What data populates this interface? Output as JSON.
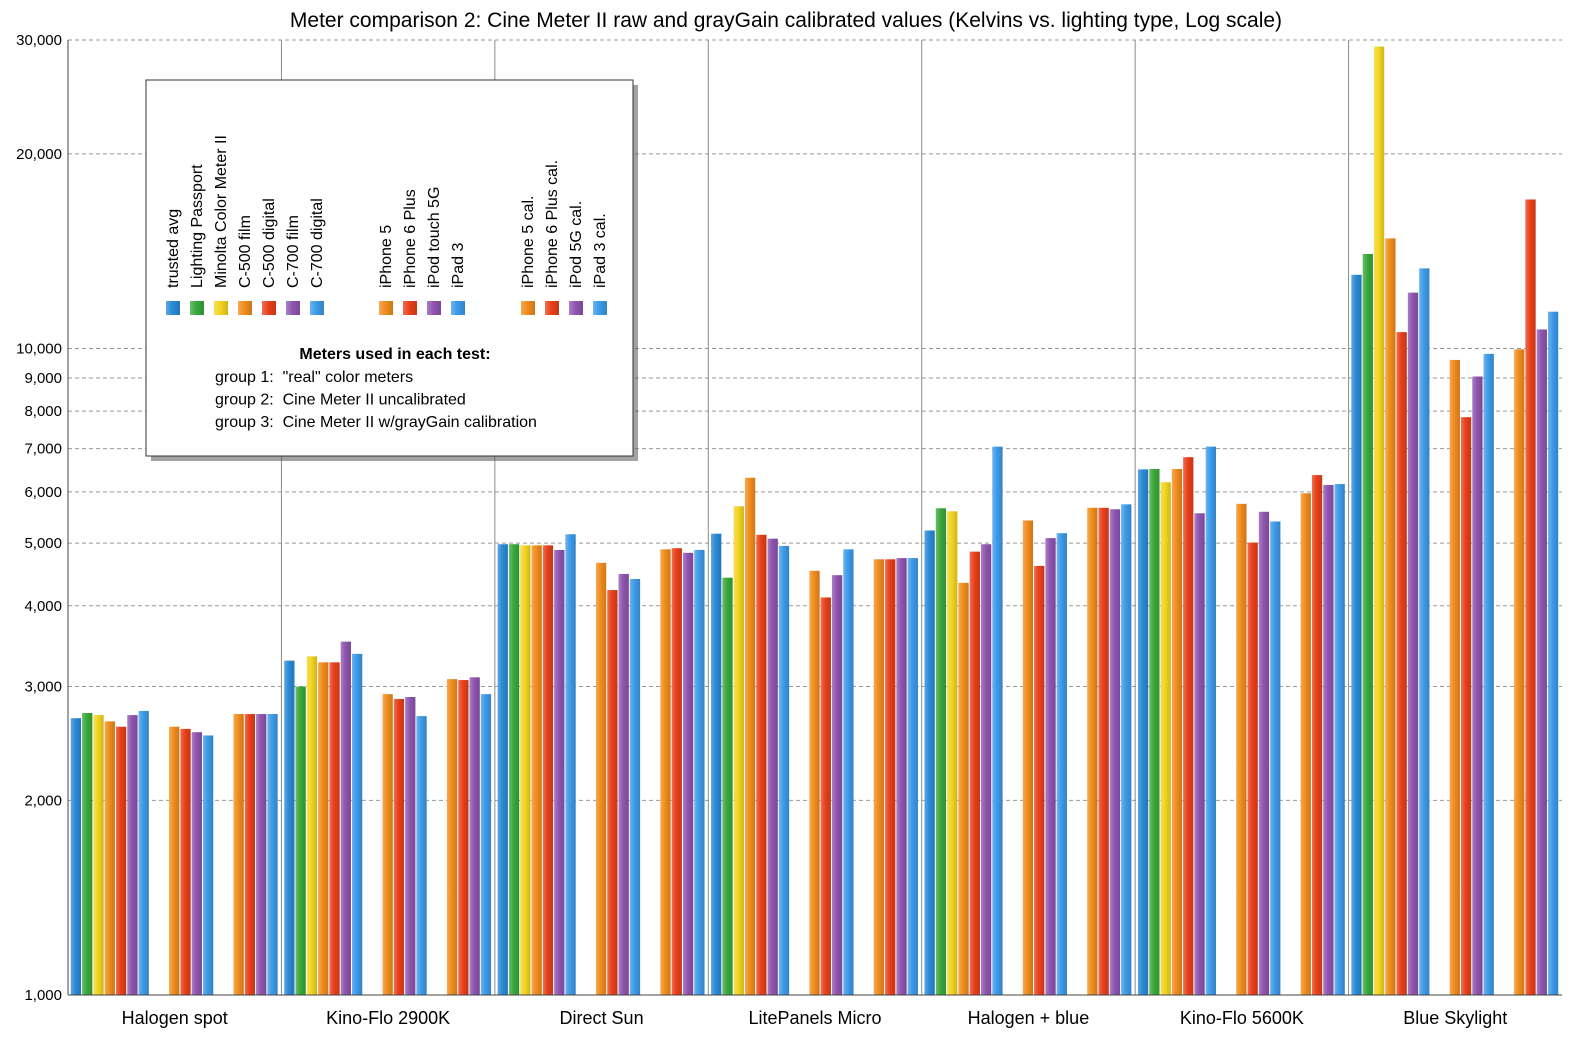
{
  "chart_data": {
    "type": "bar",
    "title": "Meter comparison 2: Cine Meter II raw and grayGain calibrated values (Kelvins vs. lighting type, Log scale)",
    "xlabel": "",
    "ylabel": "",
    "yscale": "log",
    "ylim": [
      1000,
      30000
    ],
    "yticks": [
      1000,
      2000,
      3000,
      4000,
      5000,
      6000,
      7000,
      8000,
      9000,
      10000,
      20000,
      30000
    ],
    "ytick_labels": [
      "1,000",
      "2,000",
      "3,000",
      "4,000",
      "5,000",
      "6,000",
      "7,000",
      "8,000",
      "9,000",
      "10,000",
      "20,000",
      "30,000"
    ],
    "grid": true,
    "legend_position": "top-left",
    "categories": [
      "Halogen spot",
      "Kino-Flo 2900K",
      "Direct Sun",
      "LitePanels Micro",
      "Halogen + blue",
      "Kino-Flo 5600K",
      "Blue Skylight"
    ],
    "series": [
      {
        "name": "trusted avg",
        "group": 1,
        "color": "#2a8ad6",
        "values": [
          2680,
          3290,
          4980,
          5170,
          5230,
          6500,
          13000
        ]
      },
      {
        "name": "Lighting Passport",
        "group": 1,
        "color": "#3aa83a",
        "values": [
          2730,
          3000,
          4980,
          4420,
          5660,
          6510,
          14000
        ]
      },
      {
        "name": "Minolta Color Meter II",
        "group": 1,
        "color": "#f2d420",
        "values": [
          2710,
          3340,
          4960,
          5700,
          5600,
          6210,
          29300
        ]
      },
      {
        "name": "C-500 film",
        "group": 1,
        "color": "#f08c1c",
        "values": [
          2650,
          3270,
          4960,
          6310,
          4340,
          6510,
          14800
        ]
      },
      {
        "name": "C-500 digital",
        "group": 1,
        "color": "#e8401a",
        "values": [
          2600,
          3270,
          4960,
          5150,
          4850,
          6790,
          10600
        ]
      },
      {
        "name": "C-700 film",
        "group": 1,
        "color": "#8e55b0",
        "values": [
          2710,
          3520,
          4880,
          5080,
          4980,
          5560,
          12200
        ]
      },
      {
        "name": "C-700 digital",
        "group": 1,
        "color": "#3c9ae8",
        "values": [
          2750,
          3370,
          5160,
          4950,
          7050,
          7050,
          13300
        ]
      },
      {
        "name": "iPhone 5",
        "group": 2,
        "color": "#f08c1c",
        "values": [
          2600,
          2920,
          4660,
          4530,
          5420,
          5750,
          9600
        ]
      },
      {
        "name": "iPhone 6 Plus",
        "group": 2,
        "color": "#e8401a",
        "values": [
          2580,
          2870,
          4230,
          4120,
          4610,
          5010,
          7830
        ]
      },
      {
        "name": "iPod touch 5G",
        "group": 2,
        "color": "#8e55b0",
        "values": [
          2550,
          2890,
          4480,
          4460,
          5090,
          5590,
          9050
        ]
      },
      {
        "name": "iPad 3",
        "group": 2,
        "color": "#3c9ae8",
        "values": [
          2520,
          2700,
          4400,
          4890,
          5180,
          5400,
          9810
        ]
      },
      {
        "name": "iPhone 5 cal.",
        "group": 3,
        "color": "#f08c1c",
        "values": [
          2720,
          3080,
          4890,
          4720,
          5670,
          5970,
          9970
        ]
      },
      {
        "name": "iPhone 6 Plus cal.",
        "group": 3,
        "color": "#e8401a",
        "values": [
          2720,
          3070,
          4910,
          4720,
          5670,
          6370,
          17000
        ]
      },
      {
        "name": "iPod 5G cal.",
        "group": 3,
        "color": "#8e55b0",
        "values": [
          2720,
          3100,
          4830,
          4740,
          5640,
          6150,
          10700
        ]
      },
      {
        "name": "iPad 3 cal.",
        "group": 3,
        "color": "#3c9ae8",
        "values": [
          2720,
          2920,
          4880,
          4740,
          5740,
          6170,
          11400
        ]
      }
    ],
    "legend_note": {
      "heading": "Meters used in each test:",
      "lines": [
        "group 1:  \"real\" color meters",
        "group 2:  Cine Meter II uncalibrated",
        "group 3:  Cine Meter II w/grayGain calibration"
      ]
    }
  }
}
